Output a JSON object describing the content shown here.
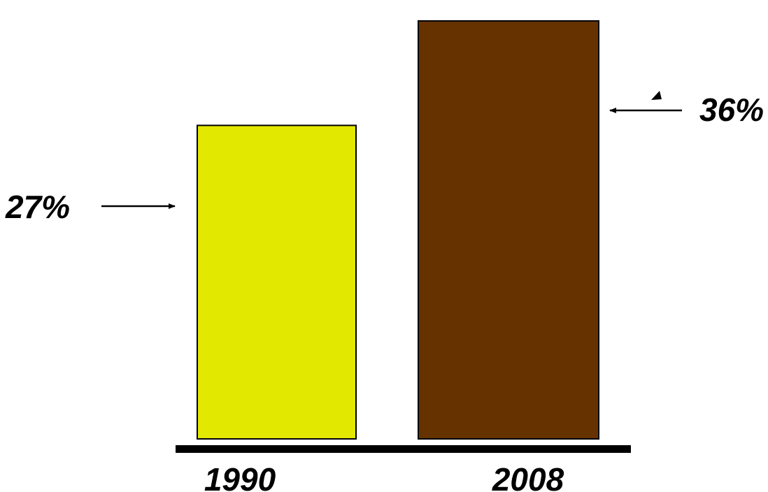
{
  "chart_data": {
    "type": "bar",
    "categories": [
      "1990",
      "2008"
    ],
    "values": [
      27,
      36
    ],
    "value_labels": [
      "27%",
      "36%"
    ],
    "colors": [
      "#E3E800",
      "#663300"
    ],
    "bar_stroke": "#000000",
    "title": "",
    "xlabel": "",
    "ylabel": "",
    "grid": false,
    "legend": "none"
  }
}
